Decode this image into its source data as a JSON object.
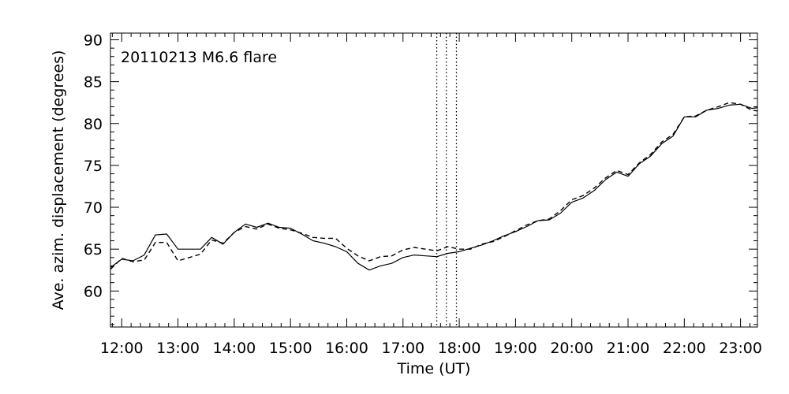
{
  "chart_data": {
    "type": "line",
    "title": "",
    "annotation": "20110213 M6.6 flare",
    "xlabel": "Time (UT)",
    "ylabel": "Ave. azim. displacement (degrees)",
    "x_unit": "hours UT",
    "xlim": [
      11.8,
      23.3
    ],
    "ylim": [
      55.7,
      90.8
    ],
    "x_ticks": [
      12,
      13,
      14,
      15,
      16,
      17,
      18,
      19,
      20,
      21,
      22,
      23
    ],
    "x_tick_labels": [
      "12:00",
      "13:00",
      "14:00",
      "15:00",
      "16:00",
      "17:00",
      "18:00",
      "19:00",
      "20:00",
      "21:00",
      "22:00",
      "23:00"
    ],
    "y_ticks": [
      60,
      65,
      70,
      75,
      80,
      85,
      90
    ],
    "y_tick_labels": [
      "60",
      "65",
      "70",
      "75",
      "80",
      "85",
      "90"
    ],
    "vertical_lines": [
      17.6,
      17.77,
      17.95
    ],
    "legend": "none",
    "grid": false,
    "series": [
      {
        "style": "solid",
        "x": [
          11.8,
          12.0,
          12.2,
          12.4,
          12.6,
          12.8,
          13.0,
          13.2,
          13.4,
          13.6,
          13.8,
          14.0,
          14.2,
          14.4,
          14.6,
          14.8,
          15.0,
          15.2,
          15.4,
          15.6,
          15.8,
          16.0,
          16.2,
          16.4,
          16.6,
          16.8,
          17.0,
          17.2,
          17.4,
          17.6,
          17.8,
          18.0,
          18.2,
          18.4,
          18.6,
          18.8,
          19.0,
          19.2,
          19.4,
          19.6,
          19.8,
          20.0,
          20.2,
          20.4,
          20.6,
          20.8,
          21.0,
          21.2,
          21.4,
          21.6,
          21.8,
          22.0,
          22.2,
          22.4,
          22.6,
          22.8,
          23.0,
          23.2,
          23.3
        ],
        "y": [
          62.8,
          63.8,
          63.6,
          64.3,
          66.7,
          66.8,
          65.0,
          65.0,
          65.0,
          66.4,
          65.6,
          67.0,
          68.0,
          67.6,
          68.1,
          67.6,
          67.5,
          66.8,
          66.0,
          65.7,
          65.3,
          64.7,
          63.3,
          62.5,
          63.0,
          63.3,
          64.0,
          64.3,
          64.2,
          64.1,
          64.5,
          64.7,
          65.1,
          65.5,
          66.0,
          66.6,
          67.1,
          67.7,
          68.4,
          68.5,
          69.3,
          70.6,
          71.1,
          72.0,
          73.3,
          74.2,
          73.7,
          75.2,
          76.1,
          77.6,
          78.5,
          80.8,
          80.8,
          81.6,
          81.8,
          82.2,
          82.3,
          81.8,
          81.9
        ]
      },
      {
        "style": "dashed",
        "x": [
          11.8,
          12.0,
          12.2,
          12.4,
          12.6,
          12.8,
          13.0,
          13.2,
          13.4,
          13.6,
          13.8,
          14.0,
          14.2,
          14.4,
          14.6,
          14.8,
          15.0,
          15.2,
          15.4,
          15.6,
          15.8,
          16.0,
          16.2,
          16.4,
          16.6,
          16.8,
          17.0,
          17.2,
          17.4,
          17.6,
          17.8,
          18.0,
          18.2,
          18.4,
          18.6,
          18.8,
          19.0,
          19.2,
          19.4,
          19.6,
          19.8,
          20.0,
          20.2,
          20.4,
          20.6,
          20.8,
          21.0,
          21.2,
          21.4,
          21.6,
          21.8,
          22.0,
          22.2,
          22.4,
          22.6,
          22.8,
          23.0,
          23.2,
          23.3
        ],
        "y": [
          62.6,
          63.9,
          63.5,
          63.7,
          65.8,
          65.8,
          63.6,
          64.0,
          64.4,
          66.1,
          65.7,
          67.0,
          67.7,
          67.4,
          68.0,
          67.5,
          67.3,
          66.9,
          66.4,
          66.3,
          66.3,
          65.1,
          64.2,
          63.6,
          64.1,
          64.2,
          64.9,
          65.2,
          65.0,
          64.8,
          65.3,
          65.0,
          65.0,
          65.6,
          65.9,
          66.5,
          67.2,
          67.9,
          68.4,
          68.6,
          69.6,
          70.9,
          71.4,
          72.3,
          73.5,
          74.4,
          73.9,
          75.3,
          76.3,
          77.8,
          78.7,
          80.8,
          80.9,
          81.6,
          82.0,
          82.5,
          82.3,
          81.6,
          81.5
        ]
      }
    ]
  }
}
